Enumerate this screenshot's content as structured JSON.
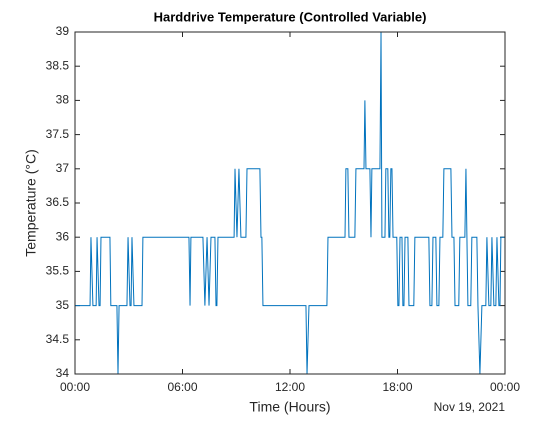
{
  "chart_data": {
    "type": "line",
    "title": "Harddrive Temperature (Controlled Variable)",
    "xlabel": "Time (Hours)",
    "ylabel": "Temperature (°C)",
    "x_date_label": "Nov 19, 2021",
    "xlim": [
      0,
      24
    ],
    "ylim": [
      34,
      39
    ],
    "xticks": [
      {
        "value": 0,
        "label": "00:00"
      },
      {
        "value": 6,
        "label": "06:00"
      },
      {
        "value": 12,
        "label": "12:00"
      },
      {
        "value": 18,
        "label": "18:00"
      },
      {
        "value": 24,
        "label": "00:00"
      }
    ],
    "yticks": [
      34,
      34.5,
      35,
      35.5,
      36,
      36.5,
      37,
      37.5,
      38,
      38.5,
      39
    ],
    "series": [
      {
        "color": "#0072bd",
        "x": [
          0,
          0.84,
          0.89,
          1.0,
          1.18,
          1.23,
          1.34,
          1.4,
          1.45,
          1.95,
          2.0,
          2.34,
          2.4,
          2.46,
          2.9,
          2.96,
          3.07,
          3.13,
          3.18,
          3.29,
          3.74,
          3.79,
          6.36,
          6.42,
          6.47,
          7.14,
          7.25,
          7.37,
          7.48,
          7.59,
          7.81,
          7.87,
          7.92,
          7.98,
          8.88,
          8.93,
          9.04,
          9.15,
          9.26,
          9.54,
          9.6,
          10.32,
          10.38,
          10.43,
          10.49,
          12.89,
          12.95,
          13.06,
          14.06,
          14.12,
          15.07,
          15.12,
          15.23,
          15.29,
          15.62,
          15.68,
          16.13,
          16.18,
          16.24,
          16.46,
          16.52,
          16.57,
          17.02,
          17.08,
          17.13,
          17.3,
          17.35,
          17.46,
          17.52,
          17.57,
          17.63,
          17.69,
          17.75,
          17.96,
          18.02,
          18.08,
          18.14,
          18.25,
          18.3,
          18.36,
          18.42,
          18.58,
          18.64,
          18.91,
          18.97,
          19.75,
          19.81,
          19.92,
          19.98,
          20.14,
          20.2,
          20.31,
          20.37,
          20.53,
          20.59,
          20.98,
          21.04,
          21.15,
          21.21,
          21.42,
          21.48,
          21.76,
          21.82,
          21.93,
          22.09,
          22.15,
          22.43,
          22.49,
          22.6,
          22.71,
          22.93,
          22.99,
          23.1,
          23.21,
          23.27,
          23.38,
          23.49,
          23.55,
          23.66,
          23.72,
          23.77,
          24
        ],
        "values": [
          35,
          35,
          36,
          35,
          35,
          36,
          35,
          35,
          36,
          36,
          35,
          35,
          34,
          35,
          35,
          36,
          35,
          35,
          36,
          35,
          35,
          36,
          36,
          35,
          36,
          36,
          35,
          36,
          35,
          36,
          36,
          35,
          35,
          36,
          36,
          37,
          36,
          37,
          36,
          36,
          37,
          37,
          36,
          36,
          35,
          35,
          34,
          35,
          35,
          36,
          36,
          37,
          37,
          36,
          36,
          37,
          37,
          38,
          37,
          37,
          36,
          37,
          37,
          39,
          36,
          36,
          37,
          37,
          36,
          36,
          37,
          37,
          36,
          36,
          35,
          35,
          36,
          36,
          35,
          35,
          36,
          36,
          35,
          35,
          36,
          36,
          35,
          35,
          36,
          36,
          35,
          35,
          36,
          36,
          37,
          37,
          36,
          36,
          35,
          35,
          36,
          36,
          37,
          35,
          35,
          36,
          36,
          35,
          34,
          35,
          35,
          36,
          35,
          35,
          36,
          35,
          35,
          36,
          35,
          35,
          36,
          36
        ]
      }
    ]
  }
}
